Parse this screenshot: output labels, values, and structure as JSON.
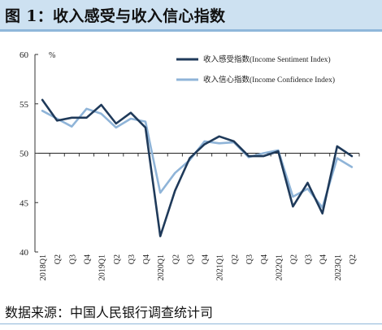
{
  "title": "图 1：收入感受与收入信心指数",
  "source": "数据来源：中国人民银行调查统计司",
  "colors": {
    "sentiment": "#1f3a5a",
    "confidence": "#8fb4d8",
    "header_bg": "#cde1f1",
    "rule": "#8fb7da"
  },
  "chart_data": {
    "type": "line",
    "unit_label": "%",
    "ylim": [
      40,
      60
    ],
    "yticks": [
      40,
      45,
      50,
      55,
      60
    ],
    "reference_line": 50,
    "grid": false,
    "legend_position": "top-right",
    "x": [
      "2018Q1",
      "2018Q2",
      "2018Q3",
      "2018Q4",
      "2019Q1",
      "2019Q2",
      "2019Q3",
      "2019Q4",
      "2020Q1",
      "2020Q2",
      "2020Q3",
      "2020Q4",
      "2021Q1",
      "2021Q2",
      "2021Q3",
      "2021Q4",
      "2022Q1",
      "2022Q2",
      "2022Q3",
      "2022Q4",
      "2023Q1",
      "2023Q2"
    ],
    "x_tick_labels": [
      "2018Q1",
      "Q2",
      "Q3",
      "Q4",
      "2019Q1",
      "Q2",
      "Q3",
      "Q4",
      "2020Q1",
      "Q2",
      "Q3",
      "Q4",
      "2021Q1",
      "Q2",
      "Q3",
      "Q4",
      "2022Q1",
      "Q2",
      "Q3",
      "Q4",
      "2023Q1",
      "Q2"
    ],
    "series": [
      {
        "name": "收入感受指数(Income Sentiment Index)",
        "color": "#1f3a5a",
        "values": [
          55.4,
          53.3,
          53.6,
          53.6,
          54.9,
          53.0,
          54.1,
          52.6,
          41.6,
          46.2,
          49.5,
          50.9,
          51.7,
          51.2,
          49.7,
          49.7,
          50.2,
          44.6,
          47.0,
          43.9,
          50.7,
          49.7
        ]
      },
      {
        "name": "收入信心指数(Income Confidence Index)",
        "color": "#8fb4d8",
        "values": [
          54.3,
          53.5,
          52.7,
          54.5,
          54.0,
          52.6,
          53.5,
          53.2,
          46.0,
          48.0,
          49.3,
          51.2,
          51.0,
          51.1,
          49.6,
          50.0,
          50.3,
          45.6,
          46.4,
          44.5,
          49.5,
          48.6
        ]
      }
    ]
  }
}
